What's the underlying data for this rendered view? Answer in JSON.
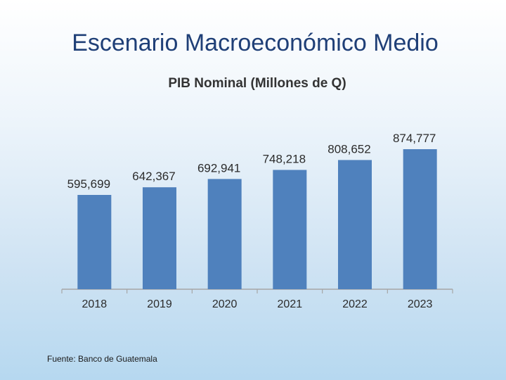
{
  "slide": {
    "title": "Escenario Macroeconómico Medio",
    "source": "Fuente: Banco de Guatemala"
  },
  "chart_data": {
    "type": "bar",
    "title": "PIB Nominal (Millones de Q)",
    "categories": [
      "2018",
      "2019",
      "2020",
      "2021",
      "2022",
      "2023"
    ],
    "values": [
      595699,
      642367,
      692941,
      748218,
      808652,
      874777
    ],
    "value_labels": [
      "595,699",
      "642,367",
      "692,941",
      "748,218",
      "808,652",
      "874,777"
    ],
    "xlabel": "",
    "ylabel": "",
    "bar_color": "#4f81bd",
    "grid": false,
    "legend": false
  }
}
